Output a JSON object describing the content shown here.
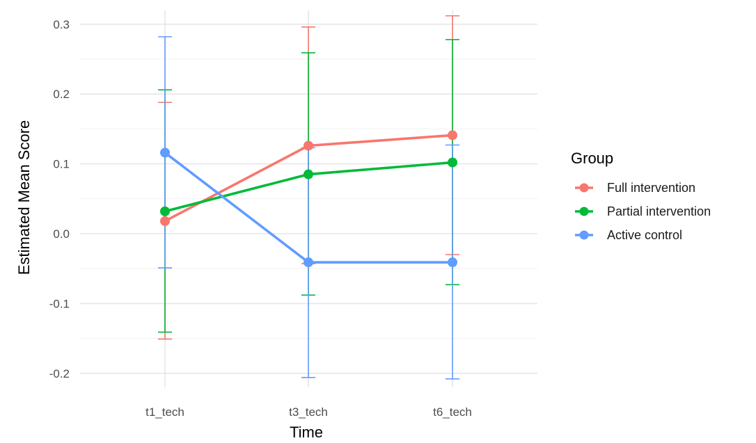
{
  "chart_data": {
    "type": "line",
    "title": "",
    "xlabel": "Time",
    "ylabel": "Estimated Mean Score",
    "categories": [
      "t1_tech",
      "t3_tech",
      "t6_tech"
    ],
    "ylim": [
      -0.22,
      0.32
    ],
    "yticks": [
      "-0.2",
      "-0.1",
      "0.0",
      "0.1",
      "0.2",
      "0.3"
    ],
    "grid": true,
    "legend": {
      "title": "Group",
      "position": "right"
    },
    "series": [
      {
        "name": "Full intervention",
        "color": "#F8766D",
        "values": [
          0.018,
          0.126,
          0.141
        ],
        "lower": [
          -0.151,
          -0.043,
          -0.03
        ],
        "upper": [
          0.188,
          0.296,
          0.312
        ]
      },
      {
        "name": "Partial intervention",
        "color": "#00BA38",
        "values": [
          0.032,
          0.085,
          0.102
        ],
        "lower": [
          -0.141,
          -0.088,
          -0.073
        ],
        "upper": [
          0.206,
          0.259,
          0.278
        ]
      },
      {
        "name": "Active control",
        "color": "#619CFF",
        "values": [
          0.116,
          -0.041,
          -0.041
        ],
        "lower": [
          -0.049,
          -0.206,
          -0.208
        ],
        "upper": [
          0.282,
          0.123,
          0.127
        ]
      }
    ]
  }
}
